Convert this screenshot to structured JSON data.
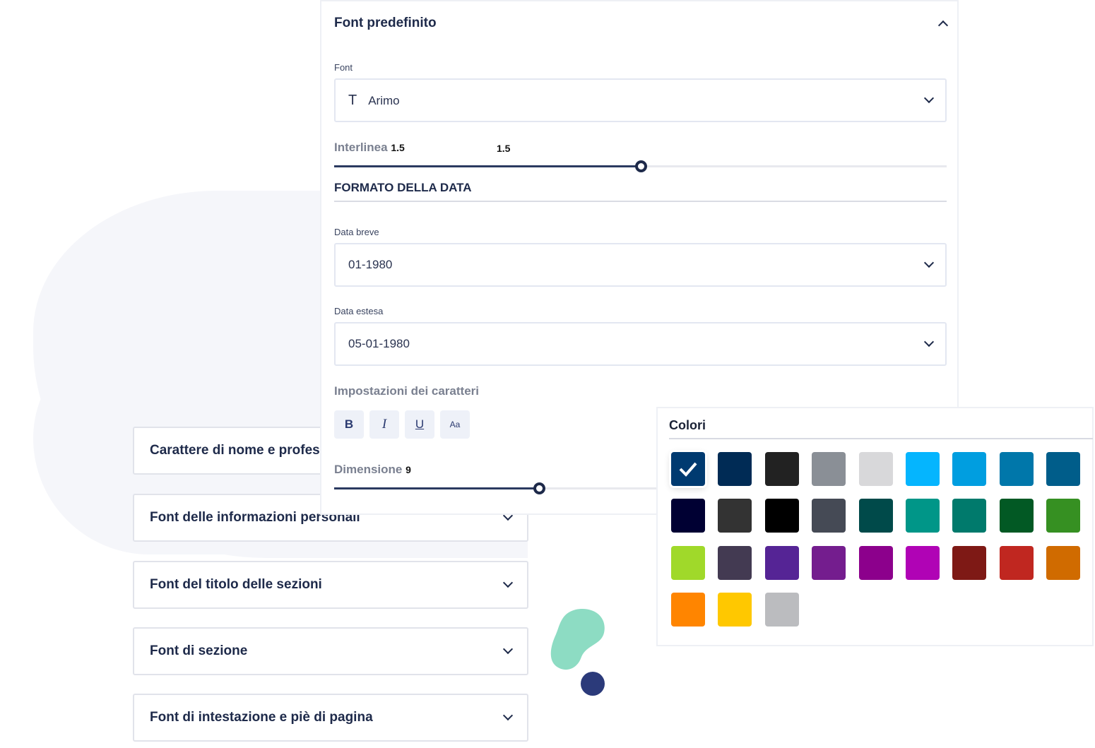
{
  "cards": [
    {
      "label": "Carattere di nome e professione"
    },
    {
      "label": "Font delle informazioni personali"
    },
    {
      "label": "Font del titolo delle sezioni"
    },
    {
      "label": "Font di sezione"
    },
    {
      "label": "Font di intestazione e piè di pagina"
    }
  ],
  "panel": {
    "title": "Font predefinito",
    "font_label": "Font",
    "font_value": "Arimo",
    "font_icon": "T",
    "line_height_label": "Interlinea",
    "line_height_value": "1.5",
    "line_height_value2": "1.5",
    "line_height_fraction": 0.5,
    "date_section": "FORMATO DELLA DATA",
    "short_date_label": "Data breve",
    "short_date_value": "01-1980",
    "long_date_label": "Data estesa",
    "long_date_value": "05-01-1980",
    "char_settings_label": "Impostazioni dei caratteri",
    "buttons": {
      "bold": "B",
      "italic": "I",
      "underline": "U",
      "case": "Aa"
    },
    "size_label": "Dimensione",
    "size_value": "9"
  },
  "colors": {
    "title": "Colori",
    "selected_index": 0,
    "swatches": [
      "#003a70",
      "#002b55",
      "#222222",
      "#8a8f96",
      "#d8d8da",
      "#05b5fe",
      "#009ee0",
      "#0077aa",
      "#005d8a",
      "#000033",
      "#333333",
      "#000000",
      "#454a55",
      "#004a4a",
      "#009688",
      "#007a6c",
      "#025924",
      "#369022",
      "#a0d92a",
      "#433a52",
      "#552495",
      "#741d8e",
      "#8c008c",
      "#b003b5",
      "#7e1915",
      "#c02720",
      "#d06b00",
      "#ff8500",
      "#ffc800",
      "#bbbcbf"
    ]
  }
}
